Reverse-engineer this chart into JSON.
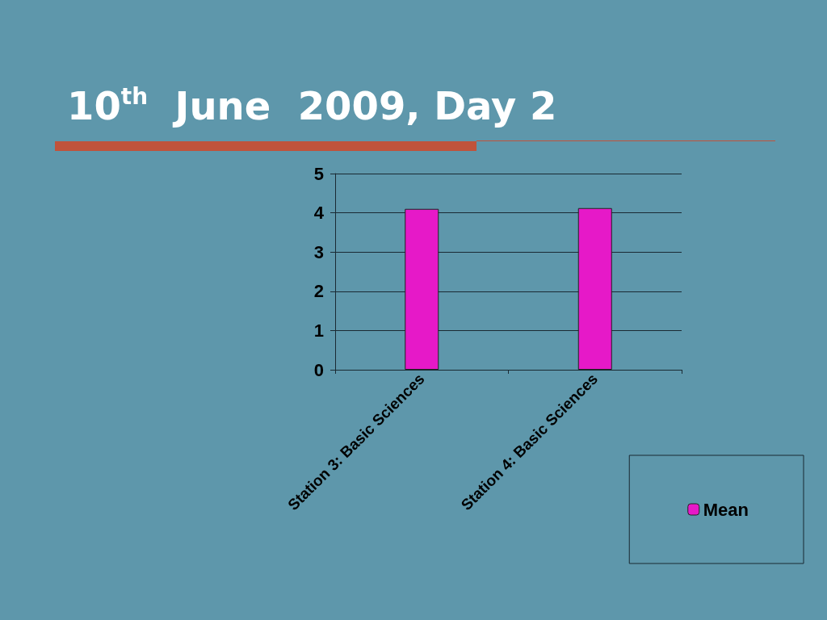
{
  "chart_data": {
    "type": "bar",
    "title": "10$^{th}$  June  2009, Day 2",
    "categories": [
      "Station 3: Basic Sciences",
      "Station 4: Basic Sciences"
    ],
    "series": [
      {
        "name": "Mean",
        "color": "#e619c8",
        "values": [
          4.1,
          4.12
        ]
      }
    ],
    "ylim": [
      0,
      5
    ],
    "yticks": [
      0,
      1,
      2,
      3,
      4,
      5
    ],
    "grid": "y",
    "legend": "bottom right"
  }
}
